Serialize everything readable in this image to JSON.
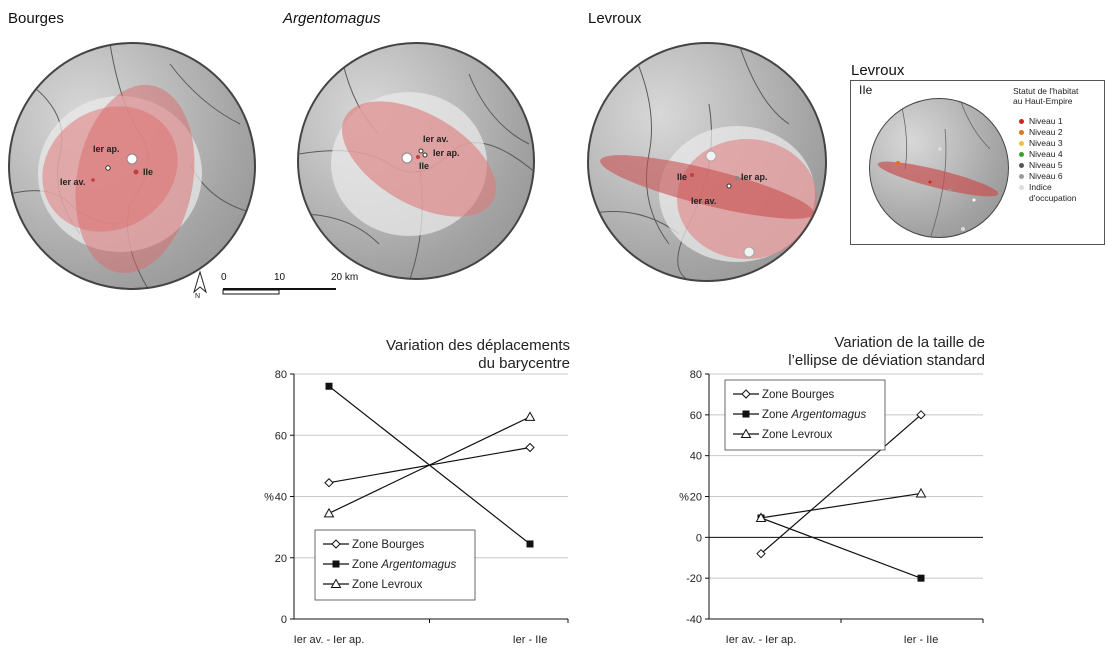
{
  "maps": {
    "bourges": {
      "title": "Bourges",
      "labels": [
        "Ier ap.",
        "Ier av.",
        "IIe"
      ]
    },
    "argentomagus": {
      "title": "Argentomagus",
      "labels": [
        "Ier av.",
        "Ier ap.",
        "IIe"
      ]
    },
    "levroux": {
      "title": "Levroux",
      "labels": [
        "IIe",
        "Ier ap.",
        "Ier av."
      ]
    },
    "levroux_inset": {
      "title": "Levroux",
      "period": "IIe",
      "legend_title_1": "Statut de l'habitat",
      "legend_title_2": "au Haut-Empire",
      "items": [
        {
          "label": "Niveau 1",
          "color": "#d42020"
        },
        {
          "label": "Niveau 2",
          "color": "#e8701c"
        },
        {
          "label": "Niveau 3",
          "color": "#f0c040"
        },
        {
          "label": "Niveau 4",
          "color": "#3aa030"
        },
        {
          "label": "Niveau 5",
          "color": "#555555"
        },
        {
          "label": "Niveau 6",
          "color": "#9a9a9a"
        },
        {
          "label": "Indice",
          "color": "#dcdcdc"
        }
      ],
      "item_extra": "d'occupation"
    }
  },
  "scale_bar": {
    "north": "N",
    "tick_0": "0",
    "tick_10": "10",
    "tick_20": "20 km"
  },
  "chart_data": [
    {
      "type": "line",
      "title_line1": "Variation des déplacements",
      "title_line2": "du barycentre",
      "ylabel": "%",
      "categories": [
        "Ier av. - Ier ap.",
        "Ier - IIe"
      ],
      "ylim": [
        0,
        80
      ],
      "yticks": [
        0,
        20,
        40,
        60,
        80
      ],
      "series": [
        {
          "name": "Zone Bourges",
          "values": [
            44.5,
            56
          ],
          "marker": "diamond-open"
        },
        {
          "name": "Zone Argentomagus",
          "values": [
            76,
            24.5
          ],
          "marker": "square-filled"
        },
        {
          "name": "Zone Levroux",
          "values": [
            34.5,
            66
          ],
          "marker": "triangle-open"
        }
      ],
      "legend_position": "bottom-left",
      "grid": "horizontal"
    },
    {
      "type": "line",
      "title_line1": "Variation de la taille de",
      "title_line2": "l’ellipse de déviation standard",
      "ylabel": "%",
      "categories": [
        "Ier av. - Ier ap.",
        "Ier - IIe"
      ],
      "ylim": [
        -40,
        80
      ],
      "yticks": [
        -40,
        -20,
        0,
        20,
        40,
        60,
        80
      ],
      "series": [
        {
          "name": "Zone Bourges",
          "values": [
            -8,
            60
          ],
          "marker": "diamond-open"
        },
        {
          "name": "Zone Argentomagus",
          "values": [
            9.5,
            -20
          ],
          "marker": "square-filled"
        },
        {
          "name": "Zone Levroux",
          "values": [
            9.5,
            21.5
          ],
          "marker": "triangle-open"
        }
      ],
      "legend_position": "top-left",
      "grid": "horizontal"
    }
  ]
}
